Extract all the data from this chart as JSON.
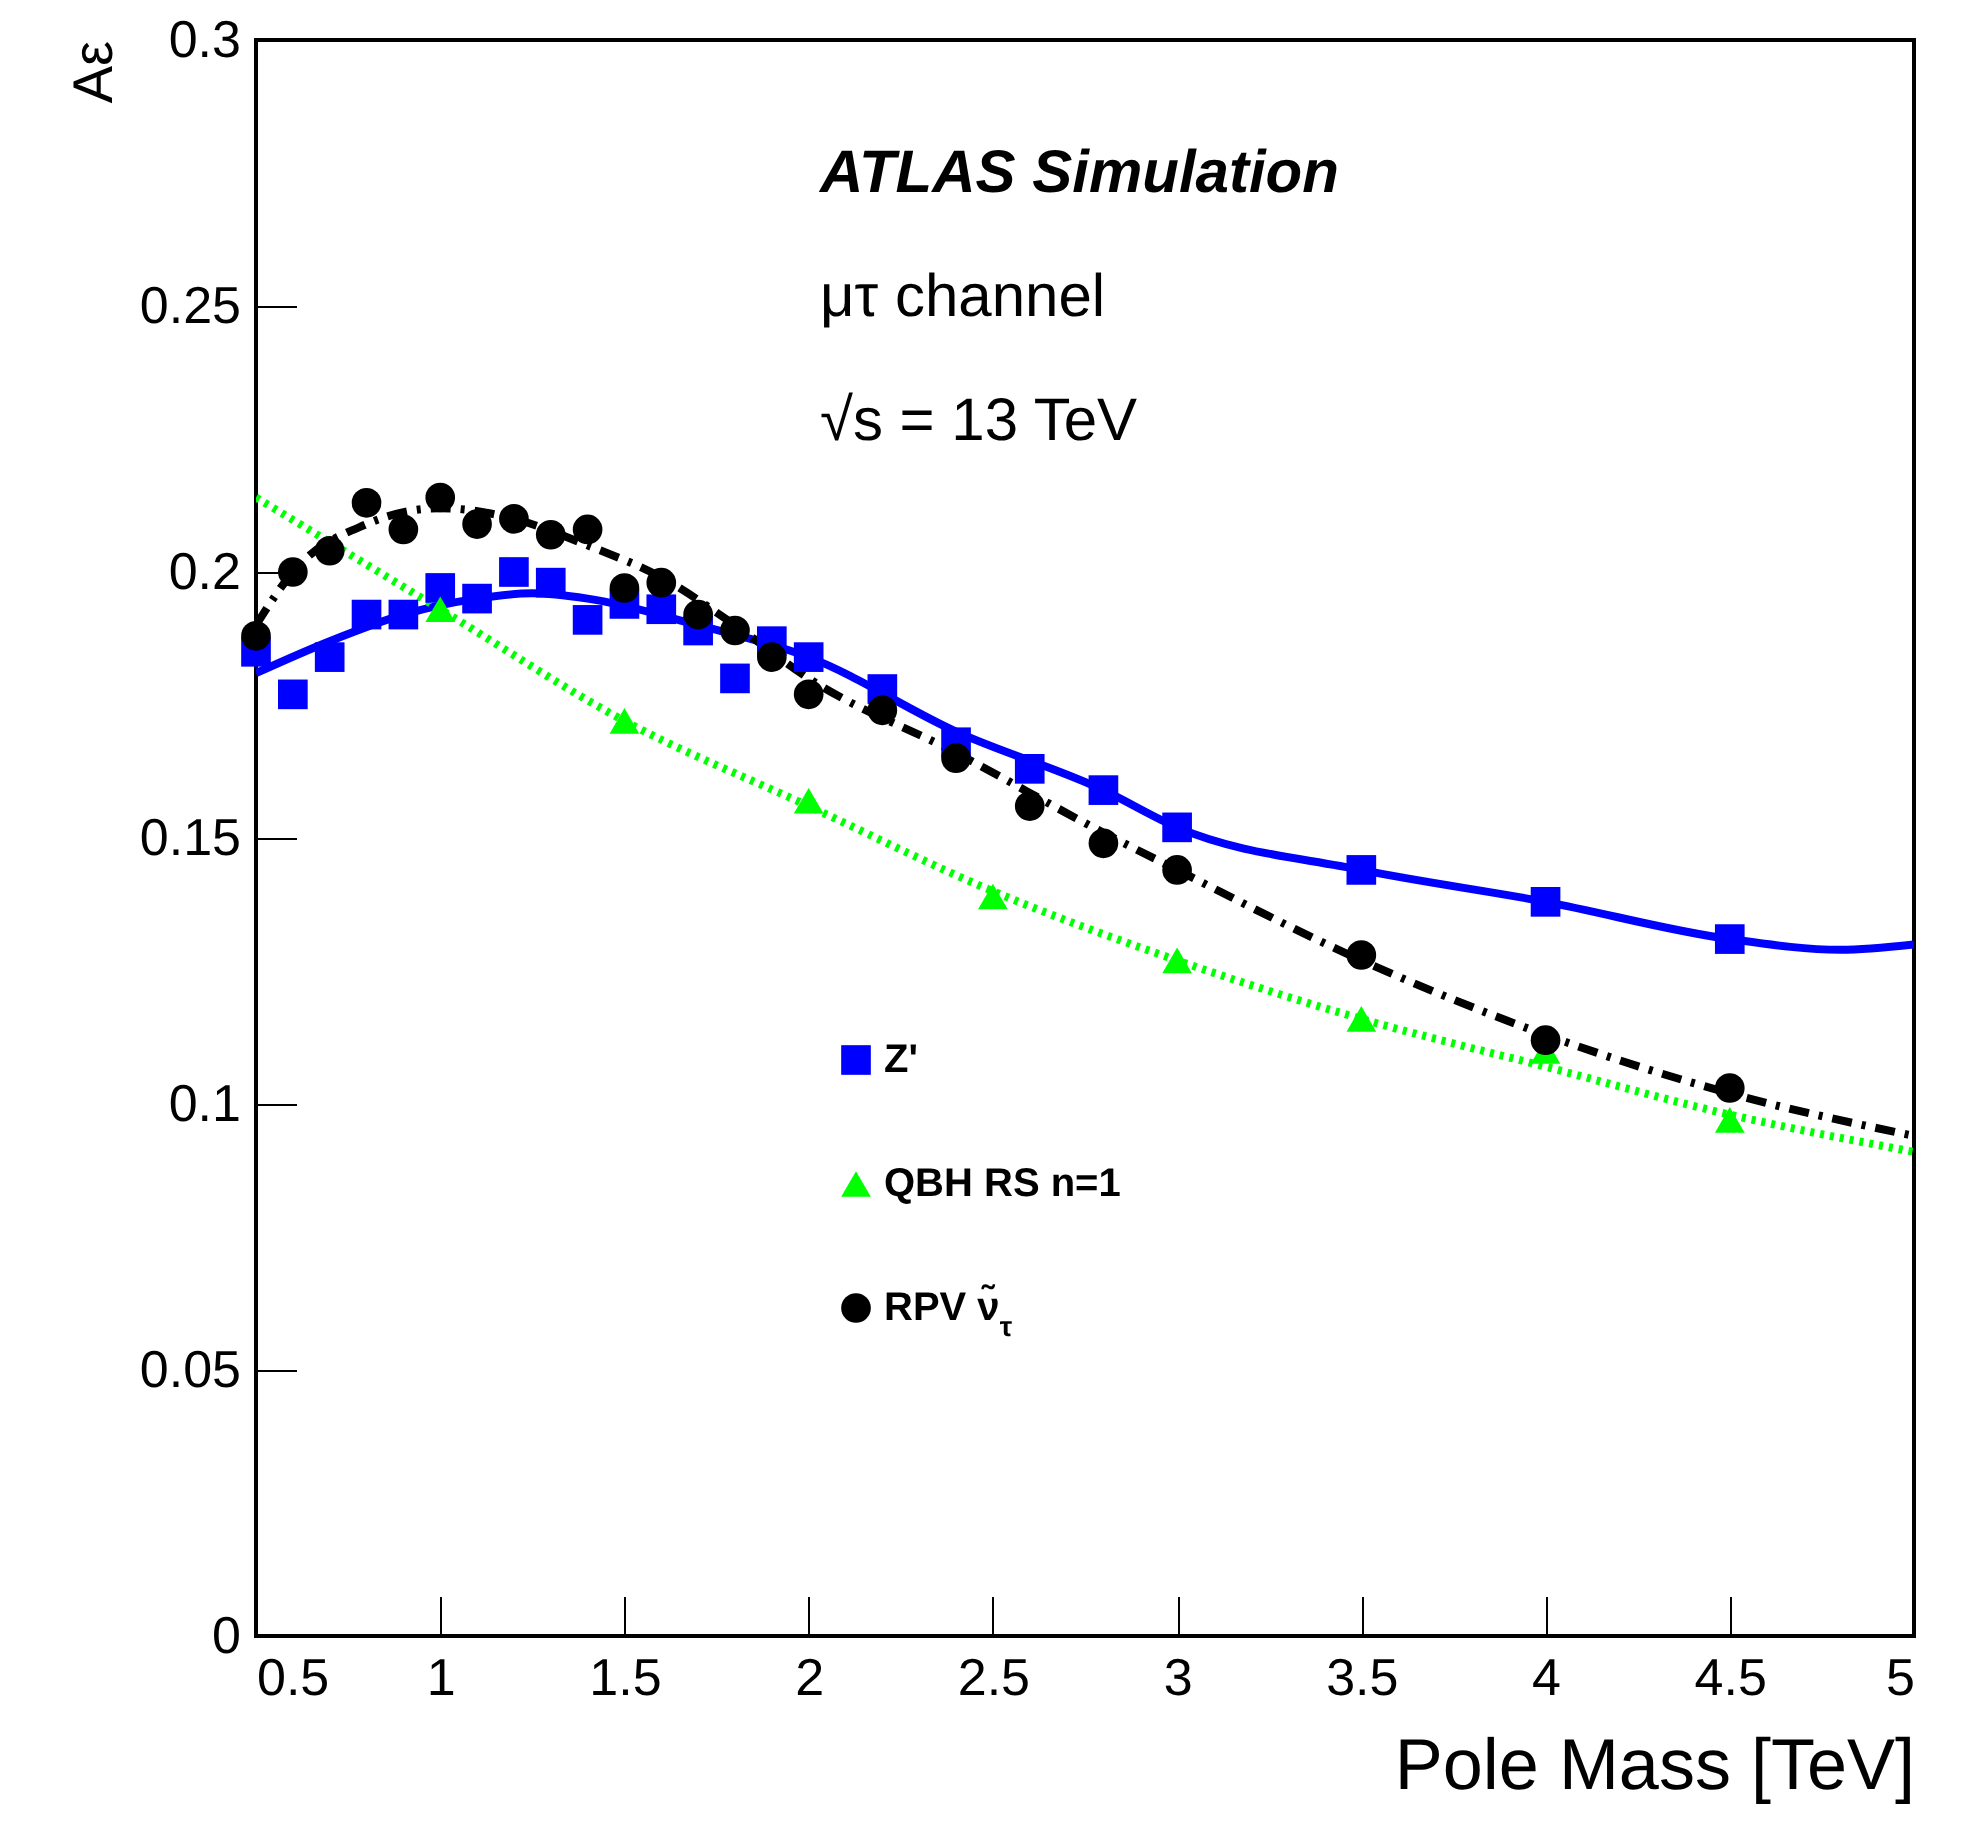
{
  "chart_data": {
    "type": "scatter",
    "xlabel": "Pole Mass [TeV]",
    "ylabel": "Aε",
    "annotations": [
      "ATLAS Simulation",
      "μτ channel",
      "√s = 13 TeV"
    ],
    "xlim": [
      0.5,
      5
    ],
    "xticks": [
      0.5,
      1,
      1.5,
      2,
      2.5,
      3,
      3.5,
      4,
      4.5,
      5
    ],
    "ylim": [
      0,
      0.3
    ],
    "yticks": [
      0,
      0.05,
      0.1,
      0.15,
      0.2,
      0.25,
      0.3
    ],
    "grid": false,
    "legend": "bottom",
    "series": [
      {
        "type": "line",
        "color": "#0000ff",
        "line_style": "solid",
        "x": [
          0.5,
          0.7,
          0.9,
          1.1,
          1.25,
          1.4,
          1.7,
          2.0,
          2.4,
          2.8,
          3.0,
          3.5,
          4.0,
          4.5,
          4.8,
          5.0
        ],
        "values": [
          0.181,
          0.187,
          0.192,
          0.195,
          0.196,
          0.195,
          0.19,
          0.184,
          0.17,
          0.159,
          0.152,
          0.144,
          0.138,
          0.131,
          0.129,
          0.13
        ]
      },
      {
        "type": "line",
        "color": "#00ff00",
        "line_style": "dotted",
        "x": [
          0.5,
          1.0,
          1.5,
          2.0,
          2.5,
          3.0,
          3.5,
          4.0,
          4.5,
          5.0
        ],
        "values": [
          0.214,
          0.193,
          0.172,
          0.156,
          0.14,
          0.127,
          0.116,
          0.107,
          0.098,
          0.091
        ]
      },
      {
        "type": "line",
        "color": "#000000",
        "line_style": "dashed",
        "x": [
          0.5,
          0.6,
          0.8,
          1.0,
          1.2,
          1.4,
          1.6,
          1.8,
          2.0,
          2.4,
          2.8,
          3.0,
          3.5,
          4.0,
          4.5,
          5.0
        ],
        "values": [
          0.19,
          0.2,
          0.209,
          0.212,
          0.21,
          0.205,
          0.199,
          0.19,
          0.18,
          0.166,
          0.151,
          0.144,
          0.127,
          0.113,
          0.102,
          0.094
        ]
      },
      {
        "name": "Z'",
        "color": "#0000ff",
        "marker": "square",
        "x": [
          0.5,
          0.6,
          0.7,
          0.8,
          0.9,
          1.0,
          1.1,
          1.2,
          1.3,
          1.4,
          1.5,
          1.6,
          1.7,
          1.8,
          1.9,
          2.0,
          2.2,
          2.4,
          2.6,
          2.8,
          3.0,
          3.5,
          4.0,
          4.5
        ],
        "values": [
          0.185,
          0.177,
          0.184,
          0.192,
          0.192,
          0.197,
          0.195,
          0.2,
          0.198,
          0.191,
          0.194,
          0.193,
          0.189,
          0.18,
          0.187,
          0.184,
          0.178,
          0.168,
          0.163,
          0.159,
          0.152,
          0.144,
          0.138,
          0.131
        ]
      },
      {
        "name": "QBH RS n=1",
        "color": "#00ff00",
        "marker": "triangle",
        "x": [
          1.0,
          1.5,
          2.0,
          2.5,
          3.0,
          3.5,
          4.0,
          4.5
        ],
        "values": [
          0.193,
          0.172,
          0.157,
          0.139,
          0.127,
          0.116,
          0.11,
          0.097
        ]
      },
      {
        "name": "RPV ν̃$_{τ}$",
        "color": "#000000",
        "marker": "circle",
        "x": [
          0.5,
          0.6,
          0.7,
          0.8,
          0.9,
          1.0,
          1.1,
          1.2,
          1.3,
          1.4,
          1.5,
          1.6,
          1.7,
          1.8,
          1.9,
          2.0,
          2.2,
          2.4,
          2.6,
          2.8,
          3.0,
          3.5,
          4.0,
          4.5
        ],
        "values": [
          0.188,
          0.2,
          0.204,
          0.213,
          0.208,
          0.214,
          0.209,
          0.21,
          0.207,
          0.208,
          0.197,
          0.198,
          0.192,
          0.189,
          0.184,
          0.177,
          0.174,
          0.165,
          0.156,
          0.149,
          0.144,
          0.128,
          0.112,
          0.103
        ]
      }
    ]
  }
}
